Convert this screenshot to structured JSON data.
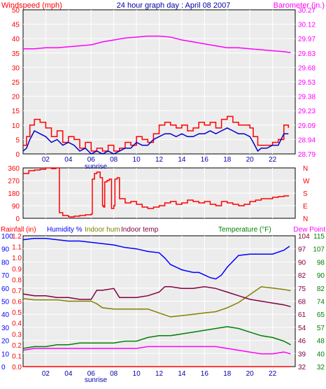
{
  "header": {
    "windspeed_label": "Windspeed (mph)",
    "title": "24 hour graph day : April 08 2007",
    "barometer_label": "Barometer (in.)"
  },
  "bottom_header": {
    "rainfall_label": "Rainfall (in)",
    "humidity_label": "Humidity %",
    "indoor_hum_label": "Indoor hum",
    "indoor_temp_label": "Indoor temp",
    "temperature_label": "Temperature (°F)",
    "dewpoint_label": "Dew Point"
  },
  "sunrise_label": "sunrise",
  "x_ticks": [
    "02",
    "04",
    "06",
    "08",
    "10",
    "12",
    "14",
    "16",
    "18",
    "20",
    "22"
  ],
  "colors": {
    "windspeed": "#ff0000",
    "wind_avg": "#0000cc",
    "barometer": "#ff00ff",
    "direction": "#ff0000",
    "humidity": "#0000ff",
    "indoor_hum": "#808000",
    "indoor_temp": "#800040",
    "temperature": "#008000",
    "dewpoint": "#ff00ff",
    "rainfall": "#ff0000",
    "panel_bg": "#ececec",
    "grid": "#ffffff"
  },
  "chart_data": [
    {
      "type": "line",
      "panel": "wind-barometer",
      "title": "24 hour graph day : April 08 2007",
      "xlabel": "",
      "x_ticks": [
        "02",
        "04",
        "06",
        "08",
        "10",
        "12",
        "14",
        "16",
        "18",
        "20",
        "22"
      ],
      "xlim": [
        0,
        24
      ],
      "left_axis": {
        "label": "Windspeed (mph)",
        "ticks": [
          0,
          5,
          10,
          15,
          20,
          25,
          30,
          35,
          40,
          45,
          50
        ],
        "ylim": [
          0,
          50
        ]
      },
      "right_axis": {
        "label": "Barometer (in.)",
        "ticks": [
          "28.79",
          "28.94",
          "29.09",
          "29.23",
          "29.38",
          "29.53",
          "29.68",
          "29.83",
          "29.97",
          "30.12",
          "30.27"
        ],
        "ylim": [
          28.79,
          30.27
        ]
      },
      "series": [
        {
          "name": "Windspeed (mph)",
          "axis": "left",
          "x": [
            0.0,
            0.3,
            0.6,
            1.0,
            1.5,
            2.0,
            2.5,
            3.0,
            3.5,
            4.0,
            4.5,
            5.0,
            5.5,
            6.0,
            6.5,
            7.0,
            7.5,
            8.0,
            8.5,
            9.0,
            9.5,
            10.0,
            10.5,
            11.0,
            11.5,
            12.0,
            12.5,
            13.0,
            13.5,
            14.0,
            14.5,
            15.0,
            15.5,
            16.0,
            16.5,
            17.0,
            17.5,
            18.0,
            18.5,
            19.0,
            19.5,
            20.0,
            20.3,
            20.7,
            21.0,
            21.5,
            22.0,
            22.5,
            23.0,
            23.4
          ],
          "values": [
            3,
            6,
            10,
            12,
            11,
            9,
            6,
            8,
            4,
            6,
            5,
            2,
            4,
            1,
            2,
            1,
            3,
            1,
            2,
            4,
            3,
            6,
            5,
            4,
            7,
            10,
            11,
            10,
            9,
            10,
            8,
            9,
            11,
            10,
            11,
            9,
            12,
            13,
            11,
            10,
            10,
            9,
            6,
            3,
            3,
            3,
            4,
            5,
            10,
            9
          ]
        },
        {
          "name": "Average windspeed",
          "axis": "left",
          "x": [
            0.0,
            0.3,
            0.6,
            1.0,
            1.5,
            2.0,
            2.5,
            3.0,
            3.5,
            4.0,
            4.5,
            5.0,
            5.5,
            6.0,
            6.5,
            7.0,
            7.5,
            8.0,
            8.5,
            9.0,
            9.5,
            10.0,
            10.5,
            11.0,
            11.5,
            12.0,
            12.5,
            13.0,
            13.5,
            14.0,
            14.5,
            15.0,
            15.5,
            16.0,
            16.5,
            17.0,
            17.5,
            18.0,
            18.5,
            19.0,
            19.5,
            20.0,
            20.3,
            20.7,
            21.0,
            21.5,
            22.0,
            22.5,
            23.0,
            23.4
          ],
          "values": [
            1,
            2,
            5,
            8,
            7,
            6,
            4,
            5,
            3,
            4,
            3,
            1,
            2,
            0,
            1,
            0,
            1,
            0,
            1,
            2,
            2,
            4,
            3,
            3,
            5,
            6,
            7,
            7,
            6,
            7,
            6,
            6,
            7,
            7,
            8,
            7,
            8,
            9,
            8,
            7,
            7,
            6,
            4,
            1,
            2,
            2,
            3,
            3,
            7,
            7
          ]
        },
        {
          "name": "Barometer (in.)",
          "axis": "right",
          "x": [
            0,
            1,
            2,
            3,
            4,
            5,
            6,
            7,
            8,
            9,
            10,
            11,
            12,
            13,
            14,
            15,
            16,
            17,
            18,
            19,
            20,
            21,
            22,
            23,
            23.6
          ],
          "values": [
            29.87,
            29.87,
            29.88,
            29.88,
            29.89,
            29.9,
            29.91,
            29.94,
            29.96,
            29.98,
            29.99,
            30.0,
            30.0,
            29.99,
            29.96,
            29.94,
            29.92,
            29.9,
            29.88,
            29.88,
            29.87,
            29.86,
            29.85,
            29.84,
            29.83
          ]
        }
      ]
    },
    {
      "type": "line",
      "panel": "wind-direction",
      "x_ticks": [
        "02",
        "04",
        "06",
        "08",
        "10",
        "12",
        "14",
        "16",
        "18",
        "20",
        "22"
      ],
      "xlim": [
        0,
        24
      ],
      "left_axis": {
        "ticks": [
          0,
          90,
          180,
          270,
          360
        ],
        "ylim": [
          0,
          360
        ]
      },
      "right_axis": {
        "ticks": [
          "N",
          "E",
          "S",
          "W",
          "N"
        ]
      },
      "series": [
        {
          "name": "Wind direction",
          "axis": "left",
          "x": [
            0.0,
            0.5,
            1.0,
            1.5,
            2.0,
            2.5,
            2.9,
            3.1,
            3.2,
            3.5,
            4.0,
            4.5,
            5.0,
            5.5,
            6.0,
            6.1,
            6.3,
            6.5,
            6.8,
            7.0,
            7.1,
            7.2,
            7.4,
            7.6,
            7.8,
            8.0,
            8.1,
            8.3,
            8.5,
            9.0,
            9.5,
            10.0,
            10.5,
            11.0,
            11.5,
            12.0,
            12.5,
            13.0,
            13.5,
            14.0,
            14.5,
            15.0,
            15.5,
            16.0,
            16.5,
            17.0,
            17.5,
            18.0,
            18.5,
            19.0,
            19.5,
            20.0,
            20.5,
            21.0,
            21.5,
            22.0,
            22.5,
            23.0,
            23.4
          ],
          "values": [
            320,
            340,
            345,
            350,
            360,
            355,
            360,
            360,
            40,
            20,
            10,
            15,
            20,
            25,
            30,
            280,
            320,
            330,
            290,
            90,
            80,
            260,
            270,
            280,
            70,
            90,
            280,
            290,
            140,
            110,
            120,
            100,
            80,
            70,
            80,
            90,
            110,
            120,
            100,
            110,
            130,
            120,
            110,
            120,
            100,
            90,
            120,
            110,
            100,
            90,
            100,
            120,
            130,
            140,
            140,
            150,
            155,
            160,
            165
          ]
        }
      ]
    },
    {
      "type": "line",
      "panel": "humidity-temperature",
      "x_ticks": [
        "02",
        "04",
        "06",
        "08",
        "10",
        "12",
        "14",
        "16",
        "18",
        "20",
        "22"
      ],
      "xlim": [
        0,
        24
      ],
      "axes": {
        "rainfall": {
          "label": "Rainfall (in)",
          "ticks": [
            "0.0",
            "0.1",
            "0.2",
            "0.3",
            "0.4",
            "0.5",
            "0.6",
            "0.7",
            "0.8",
            "0.9",
            "1.0",
            "1.1",
            "1.2"
          ],
          "ylim": [
            0,
            1.2
          ]
        },
        "humidity": {
          "label": "Humidity %",
          "ticks": [
            0,
            10,
            20,
            30,
            40,
            50,
            60,
            70,
            80,
            90,
            100
          ],
          "ylim": [
            0,
            100
          ]
        },
        "temperature": {
          "label": "Temperature (°F)",
          "ticks": [
            32,
            39,
            46,
            54,
            61,
            68,
            75,
            82,
            90,
            97,
            104
          ],
          "ylim": [
            32,
            104
          ]
        },
        "temperature_outer": {
          "ticks": [
            32,
            40,
            48,
            57,
            65,
            74,
            82,
            90,
            98,
            107,
            115
          ],
          "ylim": [
            32,
            115
          ]
        }
      },
      "series": [
        {
          "name": "Humidity %",
          "axis": "humidity",
          "x": [
            0,
            1,
            2,
            3,
            4,
            5,
            6,
            7,
            8,
            9,
            10,
            11,
            12,
            12.5,
            13,
            14,
            15,
            15.5,
            16,
            16.5,
            17,
            17.5,
            18,
            19,
            20,
            21,
            22,
            23,
            23.5
          ],
          "values": [
            97,
            98,
            98,
            97,
            96,
            96,
            95,
            94,
            93,
            91,
            90,
            88,
            87,
            83,
            78,
            74,
            72,
            72,
            70,
            68,
            67,
            70,
            76,
            85,
            86,
            86,
            86,
            89,
            92
          ]
        },
        {
          "name": "Indoor hum",
          "axis": "humidity",
          "x": [
            0,
            1,
            2,
            3,
            4,
            5,
            6,
            6.5,
            7,
            8,
            9,
            10,
            11,
            12,
            13,
            14,
            15,
            16,
            17,
            18,
            19,
            20,
            21,
            22,
            23,
            23.6
          ],
          "values": [
            52,
            51,
            51,
            51,
            50,
            50,
            50,
            48,
            45,
            44,
            44,
            44,
            44,
            41,
            38,
            39,
            40,
            41,
            42,
            45,
            49,
            55,
            61,
            60,
            59,
            58
          ]
        },
        {
          "name": "Indoor temp",
          "axis": "temperature",
          "x": [
            0,
            1,
            2,
            3,
            4,
            5,
            6,
            6.5,
            7,
            8,
            8.5,
            9,
            10,
            11,
            12,
            12.5,
            13,
            14,
            15,
            16,
            17,
            18,
            19,
            20,
            21,
            22,
            23,
            23.6
          ],
          "values": [
            72,
            71,
            71,
            70,
            70,
            69,
            69,
            74,
            74,
            75,
            70,
            70,
            70,
            71,
            73,
            76,
            76,
            75,
            75,
            76,
            75,
            73,
            71,
            69,
            68,
            67,
            66,
            65
          ]
        },
        {
          "name": "Temperature (°F)",
          "axis": "temperature",
          "x": [
            0,
            1,
            2,
            3,
            4,
            5,
            6,
            7,
            8,
            9,
            10,
            11,
            12,
            13,
            14,
            15,
            16,
            17,
            18,
            19,
            20,
            21,
            22,
            23,
            23.6
          ],
          "values": [
            42,
            43,
            43,
            44,
            44,
            45,
            45,
            45,
            45,
            46,
            46,
            48,
            49,
            49,
            50,
            51,
            52,
            53,
            54,
            53,
            51,
            49,
            48,
            46,
            44
          ]
        },
        {
          "name": "Dew Point",
          "axis": "temperature",
          "x": [
            0,
            1,
            2,
            3,
            4,
            5,
            6,
            7,
            8,
            9,
            10,
            11,
            12,
            13,
            14,
            15,
            16,
            17,
            18,
            19,
            20,
            21,
            22,
            23,
            23.6
          ],
          "values": [
            41,
            42,
            42,
            42,
            42,
            42,
            42,
            42,
            42,
            42,
            42,
            43,
            43,
            43,
            43,
            43,
            43,
            43,
            42,
            41,
            40,
            39,
            39,
            40,
            39
          ]
        },
        {
          "name": "Rainfall (in)",
          "axis": "rainfall",
          "x": [
            0,
            23.6
          ],
          "values": [
            0.0,
            0.0
          ]
        }
      ]
    }
  ]
}
